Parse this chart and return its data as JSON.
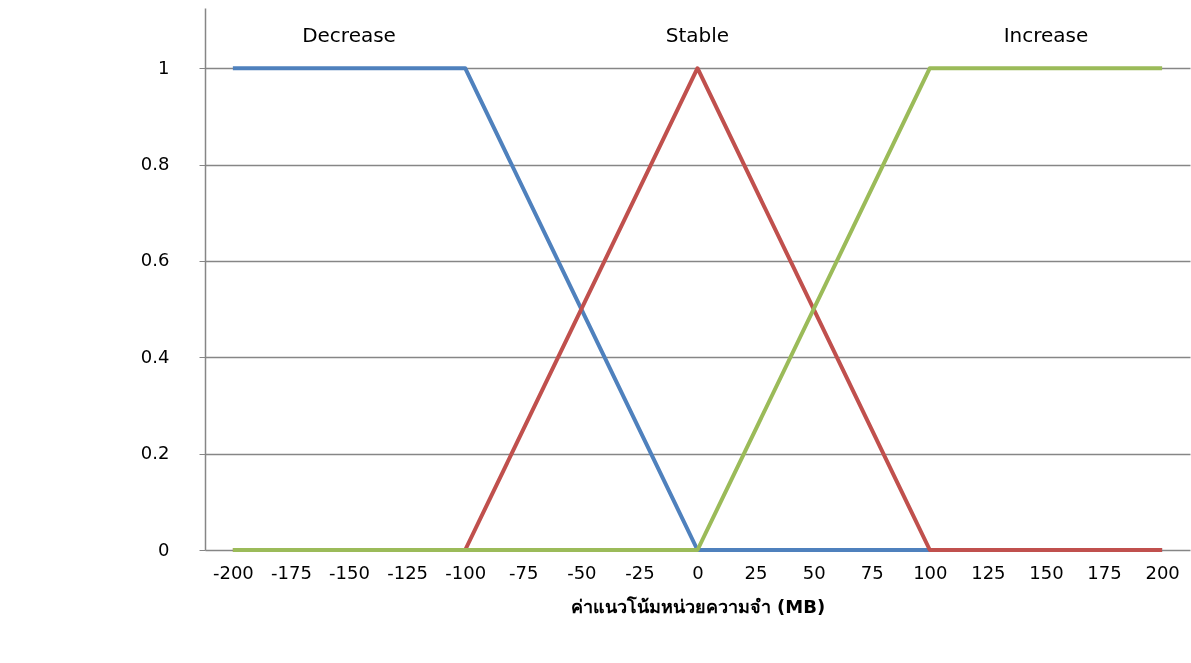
{
  "chart_data": {
    "type": "line",
    "xlabel": "ค่าแนวโน้มหน่วยความจำ (MB)",
    "xlim": [
      -212,
      212
    ],
    "xticks": [
      -200,
      -175,
      -150,
      -125,
      -100,
      -75,
      -50,
      -25,
      0,
      25,
      50,
      75,
      100,
      125,
      150,
      175,
      200
    ],
    "ylim": [
      0,
      1.125
    ],
    "yticks": [
      0,
      0.2,
      0.4,
      0.6,
      0.8,
      1
    ],
    "grid": "y",
    "marker": "none",
    "line_style": "solid",
    "series": [
      {
        "name": "Decrease",
        "color": "#4f81bd",
        "x": [
          -200,
          -100,
          0,
          200
        ],
        "values": [
          1,
          1,
          0,
          0
        ]
      },
      {
        "name": "Stable",
        "color": "#c0504d",
        "x": [
          -200,
          -100,
          0,
          100,
          200
        ],
        "values": [
          0,
          0,
          1,
          0,
          0
        ]
      },
      {
        "name": "Increase",
        "color": "#9bbb59",
        "x": [
          -200,
          0,
          100,
          200
        ],
        "values": [
          0,
          0,
          1,
          1
        ]
      }
    ]
  }
}
